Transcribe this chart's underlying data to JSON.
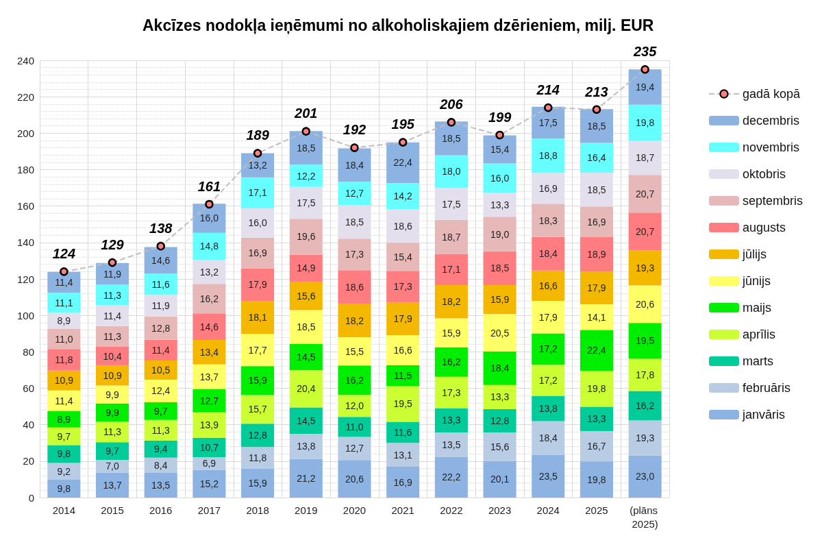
{
  "chart_data": {
    "type": "bar",
    "title": "Akcīzes nodokļa ieņēmumi no alkoholiskajiem dzērieniem, milj. EUR",
    "stacked": true,
    "grid": true,
    "legend": "right",
    "marker": "circle",
    "line_style": "dashed",
    "categories": [
      "2014",
      "2015",
      "2016",
      "2017",
      "2018",
      "2019",
      "2020",
      "2021",
      "2022",
      "2023",
      "2024",
      "2025",
      "(plāns 2025)"
    ],
    "ylim": [
      0,
      240
    ],
    "yticks": [
      0,
      20,
      40,
      60,
      80,
      100,
      120,
      140,
      160,
      180,
      200,
      220,
      240
    ],
    "series": [
      {
        "name": "janvāris",
        "color": "#8db3e2",
        "values": [
          9.8,
          13.7,
          13.5,
          15.2,
          15.9,
          21.2,
          20.6,
          16.9,
          22.2,
          20.1,
          23.5,
          19.8,
          23.0
        ],
        "value_labels": [
          "9,8",
          "13,7",
          "13,5",
          "15,2",
          "15,9",
          "21,2",
          "20,6",
          "16,9",
          "22,2",
          "20,1",
          "23,5",
          "19,8",
          "23,0"
        ]
      },
      {
        "name": "februāris",
        "color": "#b8cce4",
        "values": [
          9.2,
          7.0,
          8.4,
          6.9,
          11.8,
          13.8,
          12.7,
          13.1,
          13.5,
          15.6,
          18.4,
          16.7,
          19.3
        ],
        "value_labels": [
          "9,2",
          "7,0",
          "8,4",
          "6,9",
          "11,8",
          "13,8",
          "12,7",
          "13,1",
          "13,5",
          "15,6",
          "18,4",
          "16,7",
          "19,3"
        ]
      },
      {
        "name": "marts",
        "color": "#00cc99",
        "values": [
          9.8,
          9.7,
          9.4,
          10.7,
          12.8,
          14.5,
          11.0,
          11.6,
          13.3,
          12.8,
          13.8,
          13.3,
          16.2
        ],
        "value_labels": [
          "9,8",
          "9,7",
          "9,4",
          "10,7",
          "12,8",
          "14,5",
          "11,0",
          "11,6",
          "13,3",
          "12,8",
          "13,8",
          "13,3",
          "16,2"
        ]
      },
      {
        "name": "aprīlis",
        "color": "#ccff33",
        "values": [
          9.7,
          11.3,
          11.3,
          13.9,
          15.7,
          20.4,
          12.0,
          19.5,
          17.3,
          13.3,
          17.2,
          19.8,
          17.8
        ],
        "value_labels": [
          "9,7",
          "11,3",
          "11,3",
          "13,9",
          "15,7",
          "20,4",
          "12,0",
          "19,5",
          "17,3",
          "13,3",
          "17,2",
          "19,8",
          "17,8"
        ]
      },
      {
        "name": "maijs",
        "color": "#00ee00",
        "values": [
          8.9,
          9.9,
          9.7,
          12.7,
          15.9,
          14.5,
          16.2,
          11.5,
          16.2,
          18.4,
          17.2,
          22.4,
          19.5
        ],
        "value_labels": [
          "8,9",
          "9,9",
          "9,7",
          "12,7",
          "15,9",
          "14,5",
          "16,2",
          "11,5",
          "16,2",
          "18,4",
          "17,2",
          "22,4",
          "19,5"
        ]
      },
      {
        "name": "jūnijs",
        "color": "#ffff66",
        "values": [
          11.4,
          9.9,
          12.4,
          13.7,
          17.7,
          18.5,
          15.5,
          16.6,
          15.9,
          20.5,
          17.9,
          14.1,
          20.6
        ],
        "value_labels": [
          "11,4",
          "9,9",
          "12,4",
          "13,7",
          "17,7",
          "18,5",
          "15,5",
          "16,6",
          "15,9",
          "20,5",
          "17,9",
          "14,1",
          "20,6"
        ]
      },
      {
        "name": "jūlijs",
        "color": "#f5b800",
        "values": [
          10.9,
          10.9,
          10.5,
          13.4,
          18.1,
          15.6,
          18.2,
          17.9,
          18.2,
          15.9,
          16.6,
          17.9,
          19.3
        ],
        "value_labels": [
          "10,9",
          "10,9",
          "10,5",
          "13,4",
          "18,1",
          "15,6",
          "18,2",
          "17,9",
          "18,2",
          "15,9",
          "16,6",
          "17,9",
          "19,3"
        ]
      },
      {
        "name": "augusts",
        "color": "#ff7c80",
        "values": [
          11.8,
          10.4,
          11.4,
          14.6,
          17.9,
          14.9,
          18.6,
          17.3,
          17.1,
          18.5,
          18.4,
          18.9,
          20.7
        ],
        "value_labels": [
          "11,8",
          "10,4",
          "11,4",
          "14,6",
          "17,9",
          "14,9",
          "18,6",
          "17,3",
          "17,1",
          "18,5",
          "18,4",
          "18,9",
          "20,7"
        ]
      },
      {
        "name": "septembris",
        "color": "#e6b9b8",
        "values": [
          11.0,
          11.3,
          12.8,
          16.2,
          16.9,
          19.6,
          17.3,
          15.4,
          18.7,
          19.0,
          18.3,
          16.9,
          20.7
        ],
        "value_labels": [
          "11,0",
          "11,3",
          "12,8",
          "16,2",
          "16,9",
          "19,6",
          "17,3",
          "15,4",
          "18,7",
          "19,0",
          "18,3",
          "16,9",
          "20,7"
        ]
      },
      {
        "name": "oktobris",
        "color": "#e4dfec",
        "values": [
          8.9,
          11.4,
          11.9,
          13.2,
          16.0,
          17.5,
          18.5,
          18.6,
          17.5,
          13.3,
          16.9,
          18.5,
          18.7
        ],
        "value_labels": [
          "8,9",
          "11,4",
          "11,9",
          "13,2",
          "16,0",
          "17,5",
          "18,5",
          "18,6",
          "17,5",
          "13,3",
          "16,9",
          "18,5",
          "18,7"
        ]
      },
      {
        "name": "novembris",
        "color": "#66ffff",
        "values": [
          11.1,
          11.3,
          11.6,
          14.8,
          17.1,
          12.2,
          12.7,
          14.2,
          18.0,
          16.0,
          18.8,
          16.4,
          19.8
        ],
        "value_labels": [
          "11,1",
          "11,3",
          "11,6",
          "14,8",
          "17,1",
          "12,2",
          "12,7",
          "14,2",
          "18,0",
          "16,0",
          "18,8",
          "16,4",
          "19,8"
        ]
      },
      {
        "name": "decembris",
        "color": "#8db3e2",
        "values": [
          11.4,
          11.9,
          14.6,
          16.0,
          13.2,
          18.5,
          18.4,
          22.4,
          18.5,
          15.4,
          17.5,
          18.5,
          19.4
        ],
        "value_labels": [
          "11,4",
          "11,9",
          "14,6",
          "16,0",
          "13,2",
          "18,5",
          "18,4",
          "22,4",
          "18,5",
          "15,4",
          "17,5",
          "18,5",
          "19,4"
        ]
      },
      {
        "name": "gadā kopā",
        "type": "line",
        "color": "#bfbfbf",
        "values": [
          124,
          129,
          138,
          161,
          189,
          201,
          192,
          195,
          206,
          199,
          214,
          213,
          235
        ],
        "value_labels": [
          "124",
          "129",
          "138",
          "161",
          "189",
          "201",
          "192",
          "195",
          "206",
          "199",
          "214",
          "213",
          "235"
        ]
      }
    ]
  }
}
